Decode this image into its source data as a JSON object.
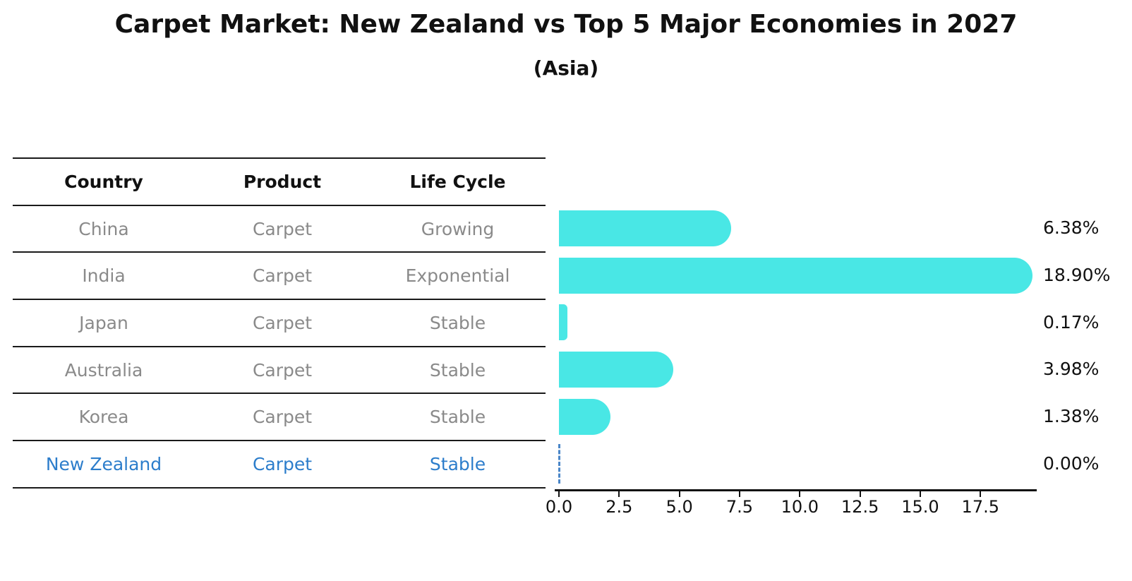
{
  "title": "Carpet Market: New Zealand vs Top 5 Major Economies in 2027",
  "subtitle": "(Asia)",
  "table": {
    "headers": [
      "Country",
      "Product",
      "Life Cycle"
    ],
    "rows": [
      {
        "country": "China",
        "product": "Carpet",
        "life_cycle": "Growing",
        "highlight": false
      },
      {
        "country": "India",
        "product": "Carpet",
        "life_cycle": "Exponential",
        "highlight": false
      },
      {
        "country": "Japan",
        "product": "Carpet",
        "life_cycle": "Stable",
        "highlight": false
      },
      {
        "country": "Australia",
        "product": "Carpet",
        "life_cycle": "Stable",
        "highlight": false
      },
      {
        "country": "Korea",
        "product": "Carpet",
        "life_cycle": "Stable",
        "highlight": false
      },
      {
        "country": "New Zealand",
        "product": "Carpet",
        "life_cycle": "Stable",
        "highlight": true
      }
    ]
  },
  "chart_data": {
    "type": "bar",
    "orientation": "horizontal",
    "title": "Carpet Market: New Zealand vs Top 5 Major Economies in 2027",
    "subtitle": "(Asia)",
    "categories": [
      "China",
      "India",
      "Japan",
      "Australia",
      "Korea",
      "New Zealand"
    ],
    "values": [
      6.38,
      18.9,
      0.17,
      3.98,
      1.38,
      0.0
    ],
    "value_labels": [
      "6.38%",
      "18.90%",
      "0.17%",
      "3.98%",
      "1.38%",
      "0.00%"
    ],
    "x_ticks": [
      0.0,
      2.5,
      5.0,
      7.5,
      10.0,
      12.5,
      15.0,
      17.5
    ],
    "x_tick_labels": [
      "0.0",
      "2.5",
      "5.0",
      "7.5",
      "10.0",
      "12.5",
      "15.0",
      "17.5"
    ],
    "xlim": [
      0,
      19.8
    ],
    "grid": false,
    "legend": false,
    "zero_value_style": "dashed-line"
  },
  "theme": {
    "bar_color": "#49e7e5",
    "highlight_text_color": "#2c7dcb",
    "zero_line_color": "#4a86c8",
    "row_text_color": "#8a8a8a",
    "axis_color": "#111111",
    "background": "#ffffff"
  }
}
